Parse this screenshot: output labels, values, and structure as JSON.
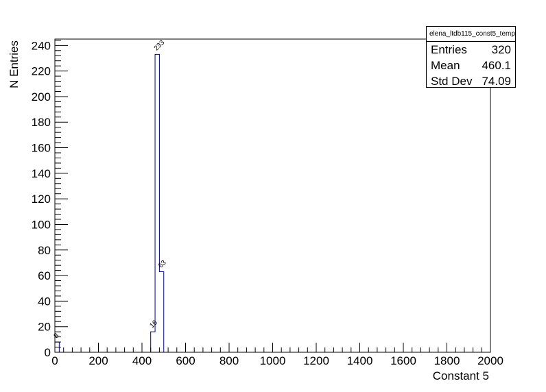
{
  "chart_data": {
    "type": "histogram",
    "xlabel": "Constant 5",
    "ylabel": "N Entries",
    "xlim": [
      0,
      2000
    ],
    "ylim": [
      0,
      245
    ],
    "x_ticks": [
      "0",
      "200",
      "400",
      "600",
      "800",
      "1000",
      "1200",
      "1400",
      "1600",
      "1800",
      "2000"
    ],
    "y_ticks": [
      "0",
      "20",
      "40",
      "60",
      "80",
      "100",
      "120",
      "140",
      "160",
      "180",
      "200",
      "220",
      "240"
    ],
    "bin_width": 20,
    "bins": [
      {
        "x0": 0,
        "x1": 20,
        "value": 8,
        "label": "8"
      },
      {
        "x0": 440,
        "x1": 460,
        "value": 16,
        "label": "16"
      },
      {
        "x0": 460,
        "x1": 480,
        "value": 233,
        "label": "233"
      },
      {
        "x0": 480,
        "x1": 500,
        "value": 63,
        "label": "63"
      }
    ],
    "line_color": "#000080",
    "grid": false
  },
  "stats": {
    "title": "elena_ltdb115_const5_temp",
    "rows": [
      {
        "label": "Entries",
        "value": "320"
      },
      {
        "label": "Mean",
        "value": "460.1"
      },
      {
        "label": "Std Dev",
        "value": "74.09"
      }
    ]
  }
}
